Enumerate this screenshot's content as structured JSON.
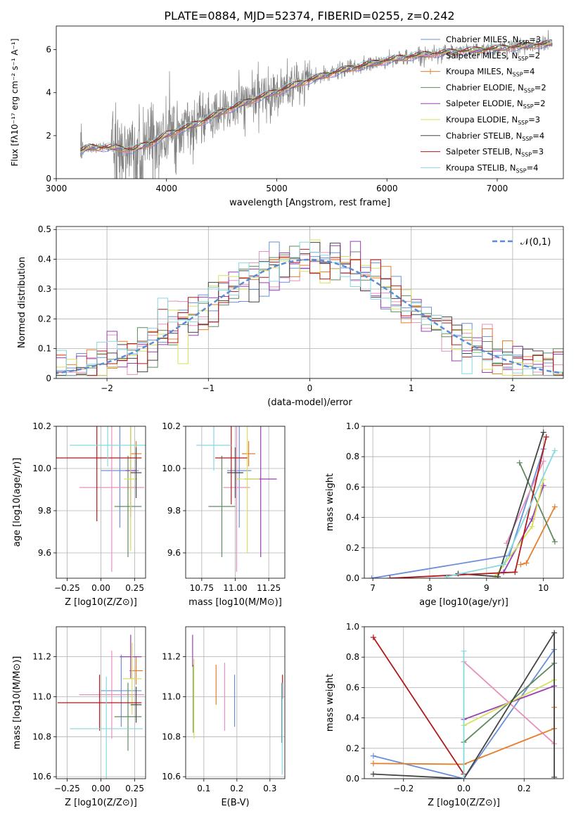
{
  "figure_title": "PLATE=0884, MJD=52374, FIBERID=0255, z=0.242",
  "models": [
    {
      "name": "Chabrier MILES",
      "nssp": "3",
      "color": "#6a8fd8"
    },
    {
      "name": "Salpeter MILES",
      "nssp": "2",
      "color": "#e88fbd"
    },
    {
      "name": "Kroupa MILES",
      "nssp": "4",
      "color": "#e87d2a"
    },
    {
      "name": "Chabrier ELODIE",
      "nssp": "2",
      "color": "#5f8a5f"
    },
    {
      "name": "Salpeter ELODIE",
      "nssp": "2",
      "color": "#9b3fb5"
    },
    {
      "name": "Kroupa ELODIE",
      "nssp": "3",
      "color": "#d6e05a"
    },
    {
      "name": "Chabrier STELIB",
      "nssp": "4",
      "color": "#444444"
    },
    {
      "name": "Salpeter STELIB",
      "nssp": "3",
      "color": "#b01a1a"
    },
    {
      "name": "Kroupa STELIB",
      "nssp": "4",
      "color": "#86d8e0"
    }
  ],
  "chart_data": [
    {
      "id": "spectrum",
      "type": "line",
      "xlabel": "wavelength [Angstrom, rest frame]",
      "ylabel": "Flux [f_λ10^-17 erg cm^-2 s^-1 A^-1]",
      "xlim": [
        3000,
        7600
      ],
      "ylim": [
        0,
        7.1
      ],
      "xticks": [
        3000,
        4000,
        5000,
        6000,
        7000
      ],
      "yticks": [
        0,
        2,
        4,
        6
      ],
      "data_color": "#808080",
      "data_range": [
        3220,
        7500
      ],
      "continuum": {
        "x": [
          3220,
          3300,
          3500,
          3700,
          3900,
          4000,
          4300,
          4500,
          4800,
          5000,
          5300,
          5600,
          6000,
          6300,
          6600,
          7000,
          7300,
          7500
        ],
        "y": [
          1.3,
          1.45,
          1.45,
          1.35,
          1.75,
          2.05,
          2.6,
          3.1,
          3.7,
          4.05,
          4.6,
          5.05,
          5.5,
          5.75,
          5.9,
          6.05,
          6.2,
          6.3
        ]
      },
      "legend_position": "upper right"
    },
    {
      "id": "residuals",
      "type": "histogram",
      "xlabel": "(data-model)/error",
      "ylabel": "Normed distribution",
      "xlim": [
        -2.5,
        2.5
      ],
      "ylim": [
        0,
        0.51
      ],
      "xticks": [
        -2,
        -1,
        0,
        1,
        2
      ],
      "yticks": [
        0,
        0.1,
        0.2,
        0.3,
        0.4,
        0.5
      ],
      "bin_width": 0.1,
      "reference": {
        "label": "𝒩(0,1)",
        "color": "#5b8dd6",
        "mean": 0,
        "sigma": 1
      },
      "legend_position": "upper right",
      "grid": true
    },
    {
      "id": "age_vs_Z",
      "type": "scatter",
      "xlabel": "Z [log10(Z/Z⊙)]",
      "ylabel": "age [log10(age/yr)]",
      "xlim": [
        -0.33,
        0.33
      ],
      "ylim": [
        9.48,
        10.2
      ],
      "xticks": [
        -0.25,
        0,
        0.25
      ],
      "yticks": [
        9.6,
        9.8,
        10.0,
        10.2
      ],
      "points": [
        {
          "x": 0.14,
          "y": 9.99,
          "xerr": 0.14,
          "yerr": 0.27
        },
        {
          "x": 0.08,
          "y": 9.91,
          "xerr": 0.24,
          "yerr": 0.4
        },
        {
          "x": 0.26,
          "y": 10.07,
          "xerr": 0.04,
          "yerr": 0.06
        },
        {
          "x": 0.2,
          "y": 9.82,
          "xerr": 0.1,
          "yerr": 0.24
        },
        {
          "x": 0.22,
          "y": 9.99,
          "xerr": 0.04,
          "yerr": 0.22
        },
        {
          "x": 0.22,
          "y": 9.95,
          "xerr": 0.05,
          "yerr": 0.34
        },
        {
          "x": 0.26,
          "y": 9.98,
          "xerr": 0.04,
          "yerr": 0.12
        },
        {
          "x": -0.03,
          "y": 10.05,
          "xerr": 0.33,
          "yerr": 0.3
        },
        {
          "x": 0.05,
          "y": 10.11,
          "xerr": 0.28,
          "yerr": 0.1
        }
      ]
    },
    {
      "id": "age_vs_mass",
      "type": "scatter",
      "xlabel": "mass [log10(M/M⊙)]",
      "ylabel": "",
      "xlim": [
        10.63,
        11.37
      ],
      "ylim": [
        9.48,
        10.2
      ],
      "xticks": [
        10.75,
        11.0,
        11.25
      ],
      "yticks": [
        9.6,
        9.8,
        10.0,
        10.2
      ],
      "points": [
        {
          "x": 11.03,
          "y": 9.99,
          "xerr": 0.09,
          "yerr": 0.27
        },
        {
          "x": 11.01,
          "y": 9.91,
          "xerr": 0.1,
          "yerr": 0.4
        },
        {
          "x": 11.1,
          "y": 10.07,
          "xerr": 0.05,
          "yerr": 0.06
        },
        {
          "x": 10.9,
          "y": 9.82,
          "xerr": 0.1,
          "yerr": 0.24
        },
        {
          "x": 11.19,
          "y": 9.95,
          "xerr": 0.12,
          "yerr": 0.37
        },
        {
          "x": 11.09,
          "y": 9.95,
          "xerr": 0.09,
          "yerr": 0.35
        },
        {
          "x": 11.0,
          "y": 9.98,
          "xerr": 0.06,
          "yerr": 0.12
        },
        {
          "x": 10.97,
          "y": 10.05,
          "xerr": 0.12,
          "yerr": 0.22
        },
        {
          "x": 10.84,
          "y": 10.11,
          "xerr": 0.13,
          "yerr": 0.12
        }
      ]
    },
    {
      "id": "weight_vs_age",
      "type": "line",
      "xlabel": "age [log10(age/yr)]",
      "ylabel": "mass weight",
      "xlim": [
        6.85,
        10.35
      ],
      "ylim": [
        0,
        1.0
      ],
      "xticks": [
        7,
        8,
        9,
        10
      ],
      "yticks": [
        0,
        0.2,
        0.4,
        0.6,
        0.8,
        1.0
      ],
      "grid": true,
      "series": [
        {
          "x": [
            6.98,
            9.4,
            10.0
          ],
          "y": [
            0.0,
            0.15,
            0.85
          ]
        },
        {
          "x": [
            9.35,
            10.0
          ],
          "y": [
            0.23,
            0.77
          ]
        },
        {
          "x": [
            9.6,
            9.7,
            10.2
          ],
          "y": [
            0.09,
            0.1,
            0.47
          ]
        },
        {
          "x": [
            9.58,
            10.2
          ],
          "y": [
            0.76,
            0.24
          ]
        },
        {
          "x": [
            9.3,
            9.8,
            10.0
          ],
          "y": [
            0.04,
            0.39,
            0.61
          ]
        },
        {
          "x": [
            9.15,
            9.8,
            10.0
          ],
          "y": [
            0.01,
            0.34,
            0.65
          ]
        },
        {
          "x": [
            8.5,
            9.2,
            10.0
          ],
          "y": [
            0.03,
            0.01,
            0.96
          ]
        },
        {
          "x": [
            7.3,
            9.5,
            10.05
          ],
          "y": [
            0.0,
            0.04,
            0.93
          ]
        },
        {
          "x": [
            8.3,
            9.3,
            10.2
          ],
          "y": [
            0.01,
            0.09,
            0.84
          ]
        }
      ]
    },
    {
      "id": "mass_vs_Z",
      "type": "scatter",
      "xlabel": "Z [log10(Z/Z⊙)]",
      "ylabel": "mass [log10(M/M⊙)]",
      "xlim": [
        -0.33,
        0.33
      ],
      "ylim": [
        10.59,
        11.35
      ],
      "xticks": [
        -0.25,
        0,
        0.25
      ],
      "yticks": [
        10.6,
        10.8,
        11.0,
        11.2
      ],
      "points": [
        {
          "x": 0.15,
          "y": 11.03,
          "xerr": 0.15,
          "yerr": 0.18
        },
        {
          "x": 0.08,
          "y": 11.01,
          "xerr": 0.24,
          "yerr": 0.22
        },
        {
          "x": 0.26,
          "y": 11.13,
          "xerr": 0.05,
          "yerr": 0.07
        },
        {
          "x": 0.2,
          "y": 10.9,
          "xerr": 0.1,
          "yerr": 0.17
        },
        {
          "x": 0.22,
          "y": 11.2,
          "xerr": 0.08,
          "yerr": 0.11
        },
        {
          "x": 0.23,
          "y": 11.09,
          "xerr": 0.07,
          "yerr": 0.18
        },
        {
          "x": 0.26,
          "y": 10.96,
          "xerr": 0.04,
          "yerr": 0.09
        },
        {
          "x": -0.01,
          "y": 10.97,
          "xerr": 0.31,
          "yerr": 0.14
        },
        {
          "x": 0.04,
          "y": 10.84,
          "xerr": 0.27,
          "yerr": 0.26
        }
      ]
    },
    {
      "id": "mass_vs_ebv",
      "type": "scatter",
      "xlabel": "E(B-V)",
      "ylabel": "",
      "xlim": [
        0.045,
        0.345
      ],
      "ylim": [
        10.59,
        11.35
      ],
      "xticks": [
        0.1,
        0.2,
        0.3
      ],
      "yticks": [
        10.6,
        10.8,
        11.0,
        11.2
      ],
      "points": [
        {
          "x": 0.193,
          "y": 10.98,
          "xerr": 0,
          "yerr": 0.13
        },
        {
          "x": 0.163,
          "y": 11.0,
          "xerr": 0,
          "yerr": 0.17
        },
        {
          "x": 0.137,
          "y": 11.06,
          "xerr": 0,
          "yerr": 0.1
        },
        {
          "x": 0.068,
          "y": 10.99,
          "xerr": 0,
          "yerr": 0.17
        },
        {
          "x": 0.066,
          "y": 11.23,
          "xerr": 0,
          "yerr": 0.08
        },
        {
          "x": 0.07,
          "y": 10.99,
          "xerr": 0,
          "yerr": 0.2
        },
        {
          "x": 0.336,
          "y": 10.92,
          "xerr": 0,
          "yerr": 0.15
        },
        {
          "x": 0.338,
          "y": 11.05,
          "xerr": 0,
          "yerr": 0.06
        },
        {
          "x": 0.337,
          "y": 10.84,
          "xerr": 0,
          "yerr": 0.23
        }
      ]
    },
    {
      "id": "weight_vs_Z",
      "type": "line",
      "xlabel": "Z [log10(Z/Z⊙)]",
      "ylabel": "mass weight",
      "xlim": [
        -0.33,
        0.33
      ],
      "ylim": [
        0,
        1.0
      ],
      "xticks": [
        -0.2,
        0,
        0.2
      ],
      "yticks": [
        0,
        0.2,
        0.4,
        0.6,
        0.8,
        1.0
      ],
      "grid": true,
      "series": [
        {
          "x": [
            -0.3,
            0.0,
            0.3
          ],
          "y": [
            0.15,
            0.0,
            0.85
          ]
        },
        {
          "x": [
            0.0,
            0.3
          ],
          "y": [
            0.77,
            0.23
          ]
        },
        {
          "x": [
            -0.3,
            0.0,
            0.3,
            0.3
          ],
          "y": [
            0.1,
            0.095,
            0.33,
            0.47
          ]
        },
        {
          "x": [
            0.0,
            0.3
          ],
          "y": [
            0.24,
            0.76
          ]
        },
        {
          "x": [
            0.0,
            0.3
          ],
          "y": [
            0.39,
            0.61
          ]
        },
        {
          "x": [
            0.0,
            0.3
          ],
          "y": [
            0.35,
            0.65
          ]
        },
        {
          "x": [
            -0.3,
            0.0,
            0.3,
            0.3
          ],
          "y": [
            0.03,
            0.0,
            0.96,
            0.01
          ]
        },
        {
          "x": [
            -0.3,
            0.0
          ],
          "y": [
            0.93,
            0.03
          ]
        },
        {
          "x": [
            0.0,
            0.0
          ],
          "y": [
            0.0,
            0.84
          ]
        }
      ]
    }
  ]
}
